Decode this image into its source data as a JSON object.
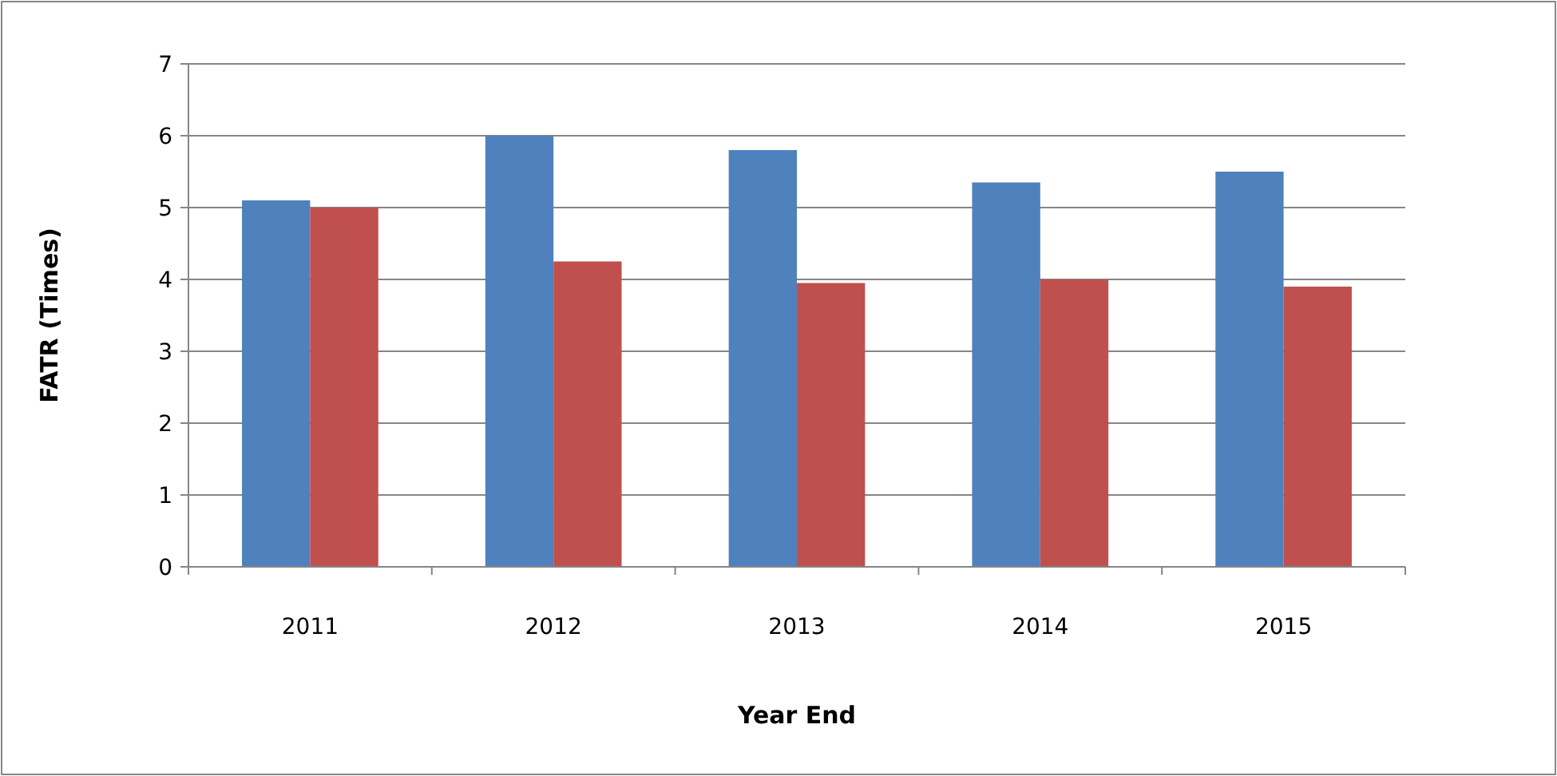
{
  "chart_data": {
    "type": "bar",
    "xlabel": "Year End",
    "ylabel": "FATR (Times)",
    "categories": [
      "2011",
      "2012",
      "2013",
      "2014",
      "2015"
    ],
    "series": [
      {
        "color": "#4f81bd",
        "values": [
          5.1,
          6.0,
          5.8,
          5.35,
          5.5
        ]
      },
      {
        "color": "#c0504d",
        "values": [
          5.0,
          4.25,
          3.95,
          4.0,
          3.9
        ]
      }
    ],
    "ylim": [
      0,
      7
    ],
    "yticks": [
      0,
      1,
      2,
      3,
      4,
      5,
      6,
      7
    ],
    "grid": "y"
  }
}
